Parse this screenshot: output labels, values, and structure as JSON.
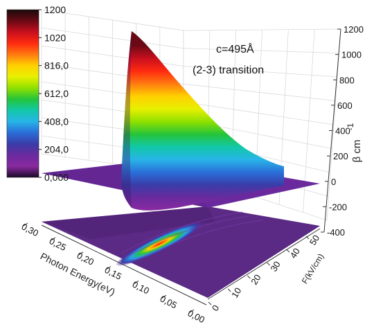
{
  "chart_data": {
    "type": "surface3d",
    "annotations": [
      "c=495Å",
      "(2-3) transition"
    ],
    "colorbar": {
      "min": 0,
      "max": 1200,
      "tick_labels": [
        "1200",
        "1020",
        "816,0",
        "612,0",
        "408,0",
        "204,0",
        "0,000"
      ],
      "colors": [
        "#1a0a0a",
        "#6a0a14",
        "#c80f1e",
        "#ff2a10",
        "#ff7a10",
        "#ffd000",
        "#e8f000",
        "#8fe000",
        "#25c43a",
        "#12c8a8",
        "#28b4e8",
        "#2a6ed8",
        "#3a3ca8",
        "#6a2a9e",
        "#8a2aa0",
        "#1a0a2a"
      ]
    },
    "z_axis": {
      "label": "β  cm",
      "label_exponent": "-1",
      "range": [
        -400,
        1200
      ],
      "tick_labels": [
        "1200",
        "1000",
        "800",
        "600",
        "400",
        "200",
        "0",
        "-200",
        "-400"
      ]
    },
    "x_axis": {
      "label": "Photon Energy(eV)",
      "range": [
        0.0,
        0.3
      ],
      "tick_labels": [
        "0,00",
        "0,05",
        "0,10",
        "0,15",
        "0,20",
        "0,25",
        "0,30"
      ]
    },
    "y_axis": {
      "label": "F(kV/cm)",
      "range": [
        0,
        50
      ],
      "tick_labels": [
        "0",
        "10",
        "20",
        "30",
        "40",
        "50"
      ]
    },
    "ridge_profile": {
      "description_units": "energy eV vs peak beta cm^-1 (at F=0 edge of surface)",
      "energy": [
        0.175,
        0.17,
        0.165,
        0.16,
        0.155,
        0.15,
        0.14,
        0.12,
        0.1,
        0.08
      ],
      "beta": [
        0,
        300,
        800,
        1200,
        1100,
        950,
        700,
        420,
        230,
        40
      ]
    },
    "projection": {
      "peak_energy": 0.15,
      "peak_field_range": [
        0,
        35
      ]
    }
  }
}
